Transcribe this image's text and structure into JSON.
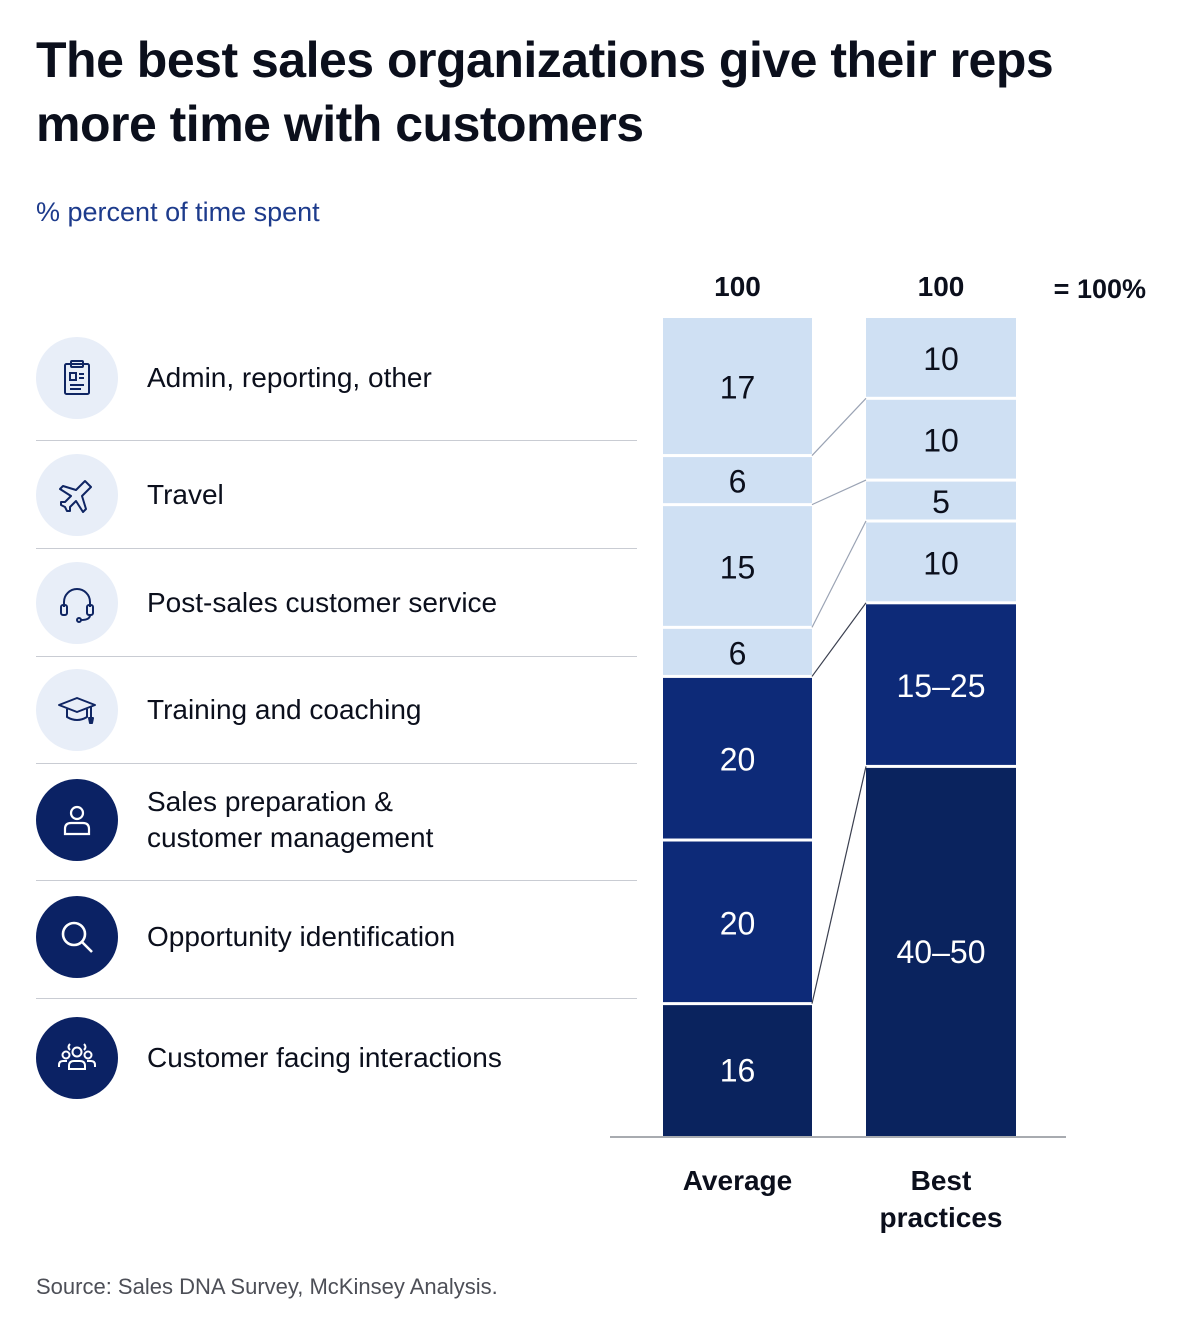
{
  "title": "The best sales organizations give their reps more time with customers",
  "subtitle": "% percent of time spent",
  "source": "Source: Sales DNA Survey, McKinsey Analysis.",
  "categories": [
    {
      "label": "Admin, reporting, other",
      "icon": "clipboard-icon",
      "tone": "light"
    },
    {
      "label": "Travel",
      "icon": "airplane-icon",
      "tone": "light"
    },
    {
      "label": "Post-sales customer service",
      "icon": "headset-icon",
      "tone": "light"
    },
    {
      "label": "Training and coaching",
      "icon": "graduation-cap-icon",
      "tone": "light"
    },
    {
      "label": "Sales preparation &\ncustomer management",
      "icon": "person-icon",
      "tone": "dark"
    },
    {
      "label": "Opportunity identification",
      "icon": "magnifier-icon",
      "tone": "dark"
    },
    {
      "label": "Customer facing interactions",
      "icon": "group-icon",
      "tone": "dark"
    }
  ],
  "chart_data": {
    "type": "bar",
    "stacked": true,
    "total_label": "= 100%",
    "categories": [
      "Average",
      "Best practices"
    ],
    "totals": [
      "100",
      "100"
    ],
    "series_order": [
      "Admin, reporting, other",
      "Travel",
      "Post-sales customer service",
      "Training and coaching",
      "Sales preparation & customer management",
      "Opportunity identification",
      "Customer facing interactions"
    ],
    "average": [
      {
        "category": "Admin, reporting, other",
        "value": 17,
        "label": "17"
      },
      {
        "category": "Travel",
        "value": 6,
        "label": "6"
      },
      {
        "category": "Post-sales customer service",
        "value": 15,
        "label": "15"
      },
      {
        "category": "Training and coaching",
        "value": 6,
        "label": "6"
      },
      {
        "category": "Sales preparation & customer management",
        "value": 20,
        "label": "20"
      },
      {
        "category": "Opportunity identification",
        "value": 20,
        "label": "20"
      },
      {
        "category": "Customer facing interactions",
        "value": 16,
        "label": "16"
      }
    ],
    "best_practices": [
      {
        "category": "Admin, reporting, other",
        "value": 10,
        "label": "10"
      },
      {
        "category": "Travel",
        "value": 10,
        "label": "10"
      },
      {
        "category": "Post-sales customer service",
        "value": 5,
        "label": "5"
      },
      {
        "category": "Training and coaching",
        "value": 10,
        "label": "10"
      },
      {
        "category": "Sales preparation & customer management and opportunity identification",
        "value": 20,
        "range": [
          15,
          25
        ],
        "label": "15–25"
      },
      {
        "category": "Customer facing interactions",
        "value": 45,
        "range": [
          40,
          50
        ],
        "label": "40–50"
      }
    ],
    "colors": {
      "light": "#cfe0f3",
      "mid": "#0d2a78",
      "dark": "#0a235e"
    }
  }
}
